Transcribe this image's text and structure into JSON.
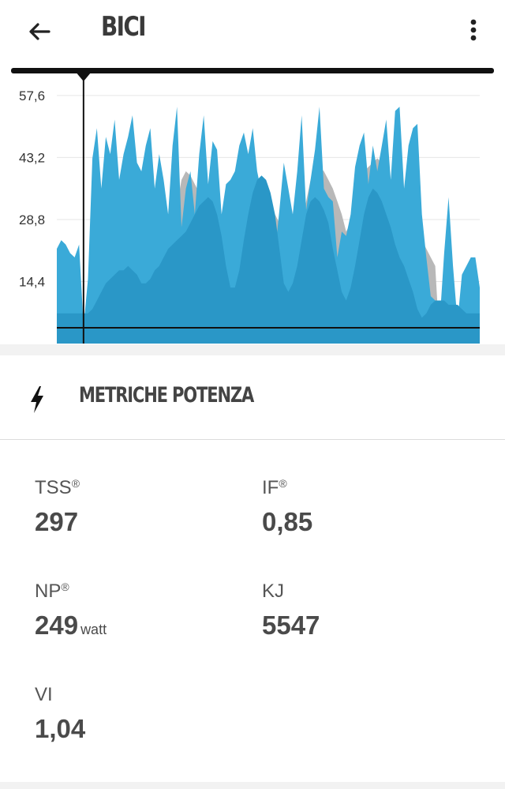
{
  "header": {
    "title": "BICI",
    "back_icon": "arrow-left-icon",
    "menu_icon": "more-vert-icon"
  },
  "chart_data": {
    "type": "area",
    "y_ticks": [
      "57,6",
      "43,2",
      "28,8",
      "14,4"
    ],
    "ylim": [
      0,
      64
    ],
    "grid": true,
    "cursor_x_index": 6,
    "series": [
      {
        "color": "#3aaad8",
        "values": [
          22,
          24,
          23,
          21,
          20,
          23,
          4,
          15,
          43,
          50,
          36,
          48,
          44,
          52,
          38,
          44,
          48,
          53,
          42,
          40,
          46,
          50,
          36,
          44,
          38,
          30,
          46,
          55,
          27,
          36,
          40,
          30,
          44,
          53,
          37,
          47,
          45,
          30,
          37,
          38,
          40,
          46,
          49,
          44,
          50,
          40,
          35,
          30,
          24,
          21,
          31,
          42,
          36,
          30,
          40,
          53,
          31,
          38,
          45,
          55,
          36,
          34,
          33,
          20,
          26,
          25,
          30,
          41,
          46,
          49,
          37,
          46,
          40,
          46,
          52,
          38,
          54,
          55,
          36,
          46,
          50,
          51,
          30,
          20,
          11,
          10,
          5,
          21,
          34,
          18,
          5,
          16,
          18,
          20,
          20,
          13
        ]
      },
      {
        "color": "#2a97c7",
        "values": [
          7,
          7,
          7,
          7,
          7,
          7,
          7,
          7,
          8,
          10,
          12,
          14,
          15,
          16,
          17,
          17,
          18,
          17,
          16,
          14,
          14,
          15,
          17,
          18,
          20,
          22,
          23,
          24,
          25,
          26,
          28,
          30,
          32,
          33,
          34,
          33,
          30,
          25,
          18,
          13,
          13,
          17,
          24,
          30,
          35,
          38,
          39,
          38,
          35,
          30,
          22,
          14,
          12,
          14,
          18,
          24,
          30,
          33,
          34,
          33,
          31,
          28,
          22,
          17,
          12,
          10,
          13,
          18,
          24,
          30,
          34,
          36,
          35,
          33,
          30,
          27,
          23,
          20,
          18,
          15,
          12,
          8,
          6,
          7,
          9,
          10,
          10,
          10,
          9,
          9,
          9,
          8,
          7,
          7,
          7,
          7
        ]
      },
      {
        "color": "#b8b8b8",
        "values": [
          0,
          0,
          0,
          0,
          0,
          0,
          0,
          0,
          0,
          0,
          0,
          0,
          0,
          0,
          0,
          0,
          0,
          0,
          0,
          0,
          0,
          0,
          0,
          0,
          0,
          20,
          26,
          32,
          38,
          40,
          39,
          37,
          35,
          32,
          30,
          28,
          26,
          24,
          23,
          22,
          22,
          24,
          27,
          30,
          33,
          35,
          37,
          35,
          33,
          30,
          28,
          26,
          24,
          22,
          23,
          27,
          33,
          38,
          40,
          41,
          40,
          38,
          36,
          33,
          30,
          26,
          28,
          33,
          38,
          40,
          41,
          42,
          43,
          42,
          40,
          38,
          36,
          34,
          32,
          30,
          28,
          26,
          24,
          22,
          20,
          18,
          0,
          0,
          0,
          0,
          0,
          0,
          0,
          0,
          0,
          0
        ]
      }
    ]
  },
  "section": {
    "title": "METRICHE POTENZA",
    "icon": "lightning-bolt-icon"
  },
  "metrics": {
    "tss": {
      "label": "TSS",
      "mark": "®",
      "value": "297"
    },
    "if": {
      "label": "IF",
      "mark": "®",
      "value": "0,85"
    },
    "np": {
      "label": "NP",
      "mark": "®",
      "value": "249",
      "unit": "watt"
    },
    "kj": {
      "label": "KJ",
      "value": "5547"
    },
    "vi": {
      "label": "VI",
      "value": "1,04"
    }
  }
}
